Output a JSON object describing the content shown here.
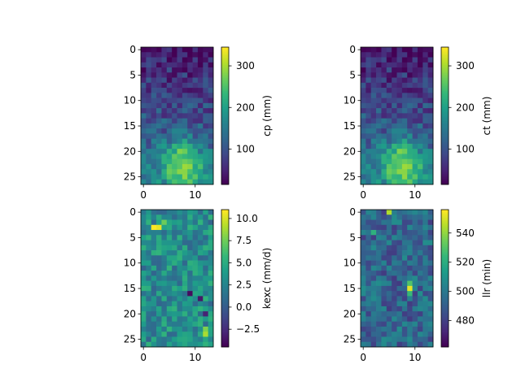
{
  "figure": {
    "layout": "2x2",
    "rows": 27,
    "cols": 14
  },
  "chart_data": [
    {
      "type": "heatmap",
      "title": "",
      "xlabel": "",
      "ylabel": "",
      "colorbar_label": "cp (mm)",
      "colormap": "viridis",
      "vmin": 15,
      "vmax": 345,
      "x_ticks": [
        0,
        10
      ],
      "y_ticks": [
        0,
        5,
        10,
        15,
        20,
        25
      ],
      "cbar_ticks": [
        100,
        200,
        300
      ],
      "pattern": "ramp_blob",
      "seed": 11,
      "params": {
        "ramp": [
          40,
          150
        ],
        "noise": 45,
        "blob": {
          "cx": 7.5,
          "cy": 22.5,
          "sx": 2.6,
          "sy": 3.0,
          "amp": 170
        }
      }
    },
    {
      "type": "heatmap",
      "title": "",
      "xlabel": "",
      "ylabel": "",
      "colorbar_label": "ct (mm)",
      "colormap": "viridis",
      "vmin": 15,
      "vmax": 345,
      "x_ticks": [
        0,
        10
      ],
      "y_ticks": [
        0,
        5,
        10,
        15,
        20,
        25
      ],
      "cbar_ticks": [
        100,
        200,
        300
      ],
      "pattern": "ramp_blob",
      "seed": 11,
      "params": {
        "ramp": [
          40,
          150
        ],
        "noise": 45,
        "blob": {
          "cx": 7.5,
          "cy": 22.5,
          "sx": 2.6,
          "sy": 3.0,
          "amp": 170
        }
      }
    },
    {
      "type": "heatmap",
      "title": "",
      "xlabel": "",
      "ylabel": "",
      "colorbar_label": "kexc (mm/d)",
      "colormap": "viridis",
      "vmin": -4.5,
      "vmax": 11,
      "x_ticks": [
        0,
        10
      ],
      "y_ticks": [
        0,
        5,
        10,
        15,
        20,
        25
      ],
      "cbar_ticks": [
        -2.5,
        0.0,
        2.5,
        5.0,
        7.5,
        10.0
      ],
      "pattern": "noise_field",
      "seed": 37,
      "params": {
        "base": 3.0,
        "noise": 2.6,
        "spots": [
          {
            "r": 3,
            "c": 2,
            "v": 11
          },
          {
            "r": 3,
            "c": 3,
            "v": 10.5
          },
          {
            "r": 2,
            "c": 4,
            "v": 7.5
          },
          {
            "r": 24,
            "c": 12,
            "v": 9
          },
          {
            "r": 23,
            "c": 12,
            "v": 8
          },
          {
            "r": 16,
            "c": 9,
            "v": -4
          },
          {
            "r": 17,
            "c": 11,
            "v": -3.5
          },
          {
            "r": 20,
            "c": 12,
            "v": -3
          }
        ]
      }
    },
    {
      "type": "heatmap",
      "title": "",
      "xlabel": "",
      "ylabel": "",
      "colorbar_label": "llr (min)",
      "colormap": "viridis",
      "vmin": 462,
      "vmax": 556,
      "x_ticks": [
        0,
        10
      ],
      "y_ticks": [
        0,
        5,
        10,
        15,
        20,
        25
      ],
      "cbar_ticks": [
        480,
        500,
        520,
        540
      ],
      "pattern": "noise_field",
      "seed": 73,
      "params": {
        "base": 493,
        "noise": 15,
        "spots": [
          {
            "r": 15,
            "c": 9,
            "v": 552
          },
          {
            "r": 14,
            "c": 9,
            "v": 530
          },
          {
            "r": 16,
            "c": 9,
            "v": 525
          },
          {
            "r": 0,
            "c": 5,
            "v": 545
          },
          {
            "r": 4,
            "c": 2,
            "v": 522
          }
        ]
      }
    }
  ]
}
